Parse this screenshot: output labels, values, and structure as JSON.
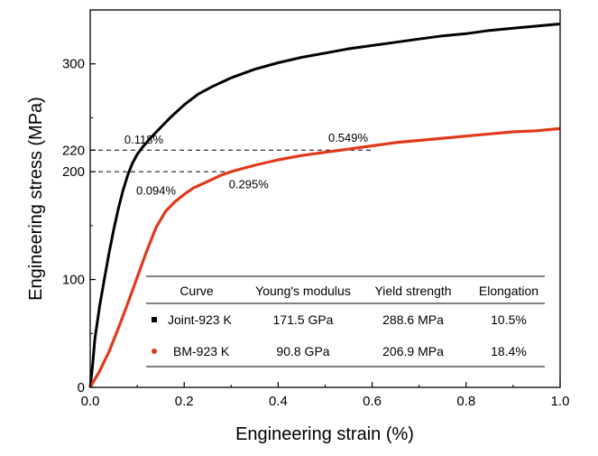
{
  "chart_data": {
    "type": "line",
    "xlabel": "Engineering strain (%)",
    "ylabel": "Engineering stress (MPa)",
    "xlim": [
      0.0,
      1.0
    ],
    "ylim": [
      0,
      350
    ],
    "x_ticks": [
      "0.0",
      "0.2",
      "0.4",
      "0.6",
      "0.8",
      "1.0"
    ],
    "y_ticks": [
      "0",
      "100",
      "200",
      "220",
      "300"
    ],
    "grid": false,
    "series": [
      {
        "name": "Joint-923 K",
        "color": "#000000",
        "marker": "square",
        "x": [
          0,
          0.005,
          0.01,
          0.02,
          0.03,
          0.04,
          0.05,
          0.06,
          0.07,
          0.08,
          0.09,
          0.1,
          0.11,
          0.12,
          0.13,
          0.15,
          0.17,
          0.2,
          0.23,
          0.26,
          0.3,
          0.35,
          0.4,
          0.45,
          0.5,
          0.55,
          0.6,
          0.65,
          0.7,
          0.75,
          0.8,
          0.85,
          0.9,
          0.95,
          1.0
        ],
        "y": [
          0,
          20,
          45,
          75,
          100,
          124,
          146,
          166,
          183,
          197,
          208,
          216,
          222,
          227,
          232,
          241,
          250,
          262,
          272,
          279,
          287,
          295,
          301,
          306,
          310,
          314,
          317,
          320,
          323,
          326,
          328,
          331,
          333,
          335,
          337
        ]
      },
      {
        "name": "BM-923 K",
        "color": "#e03a1a",
        "marker": "circle",
        "x": [
          0,
          0.02,
          0.04,
          0.06,
          0.08,
          0.1,
          0.12,
          0.14,
          0.16,
          0.18,
          0.2,
          0.22,
          0.25,
          0.28,
          0.3,
          0.35,
          0.4,
          0.45,
          0.5,
          0.55,
          0.6,
          0.65,
          0.7,
          0.75,
          0.8,
          0.85,
          0.9,
          0.95,
          1.0
        ],
        "y": [
          0,
          15,
          33,
          55,
          78,
          102,
          126,
          148,
          163,
          172,
          179,
          185,
          191,
          197,
          200,
          206,
          211,
          215,
          218,
          221,
          224,
          227,
          229,
          231,
          233,
          235,
          237,
          238,
          240
        ]
      }
    ],
    "reference_lines": [
      {
        "y": 220,
        "x_end": 0.6
      },
      {
        "y": 200,
        "x_end": 0.3
      }
    ],
    "annotations": [
      {
        "text": "0.118%",
        "x": 0.118,
        "y": 226
      },
      {
        "text": "0.094%",
        "x": 0.094,
        "y": 192
      },
      {
        "text": "0.295%",
        "x": 0.295,
        "y": 193
      },
      {
        "text": "0.549%",
        "x": 0.549,
        "y": 226
      }
    ],
    "table": {
      "headers": [
        "Curve",
        "Young's modulus",
        "Yield strength",
        "Elongation"
      ],
      "rows": [
        {
          "curve": "Joint-923 K",
          "modulus": "171.5 GPa",
          "yield": "288.6 MPa",
          "elongation": "10.5%"
        },
        {
          "curve": "BM-923 K",
          "modulus": "90.8 GPa",
          "yield": "206.9 MPa",
          "elongation": "18.4%"
        }
      ]
    }
  }
}
